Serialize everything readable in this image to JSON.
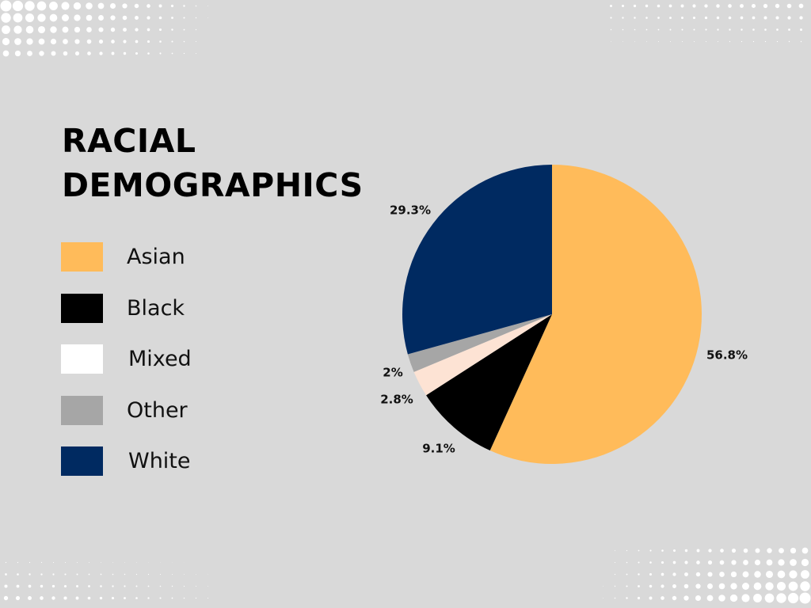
{
  "colors": {
    "background": "#d9d9d9",
    "dots": "#ffffff"
  },
  "chart_data": {
    "type": "pie",
    "title": "RACIAL DEMOGRAPHICS",
    "title_lines": [
      "RACIAL",
      "DEMOGRAPHICS"
    ],
    "legend_position": "left",
    "slices": [
      {
        "name": "Asian",
        "value": 56.8,
        "label": "56.8%",
        "color": "#ffbb5a"
      },
      {
        "name": "Black",
        "value": 9.1,
        "label": "9.1%",
        "color": "#000000"
      },
      {
        "name": "Mixed",
        "value": 2.8,
        "label": "2.8%",
        "color": "#fde3d4"
      },
      {
        "name": "Other",
        "value": 2.0,
        "label": "2%",
        "color": "#a6a6a6"
      },
      {
        "name": "White",
        "value": 29.3,
        "label": "29.3%",
        "color": "#002a61"
      }
    ],
    "legend": [
      {
        "name": "Asian",
        "color": "#ffbb5a"
      },
      {
        "name": "Black",
        "color": "#000000"
      },
      {
        "name": "Mixed",
        "color": "#ffffff"
      },
      {
        "name": "Other",
        "color": "#a6a6a6"
      },
      {
        "name": "White",
        "color": "#002a61"
      }
    ]
  }
}
